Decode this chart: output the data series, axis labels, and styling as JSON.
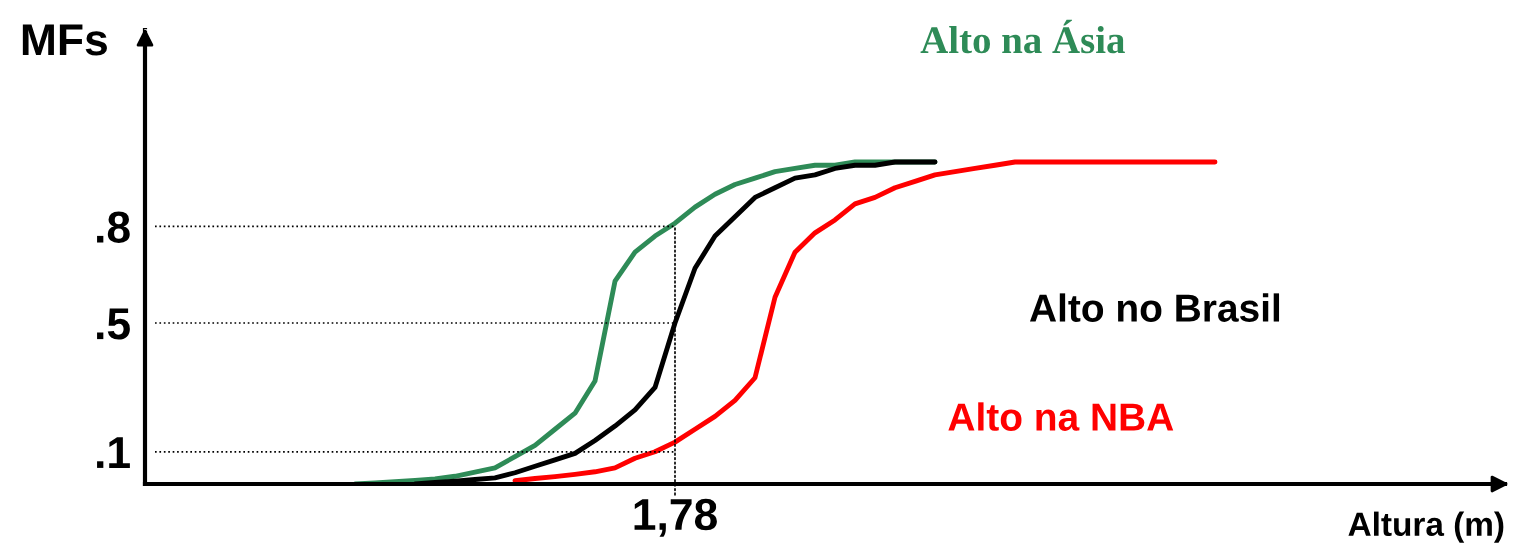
{
  "chart_data": {
    "type": "line",
    "xlabel": "Altura (m)",
    "ylabel": "MFs",
    "ylim": [
      0,
      1.41
    ],
    "yticks": [
      {
        "value": 0.1,
        "label": ".1"
      },
      {
        "value": 0.5,
        "label": ".5"
      },
      {
        "value": 0.8,
        "label": ".8"
      }
    ],
    "categories": [
      null,
      null,
      null,
      null,
      null,
      null,
      null,
      null,
      null,
      null,
      null,
      null,
      null,
      null,
      null,
      null,
      null,
      null,
      null,
      null,
      null,
      null,
      null,
      null,
      null,
      null,
      null,
      null,
      null,
      null,
      null,
      null,
      null,
      null,
      null,
      null,
      null,
      null,
      null,
      null,
      null,
      null,
      null,
      null,
      null,
      null,
      null,
      null,
      null,
      null,
      null,
      null,
      null,
      null,
      null,
      null,
      null,
      null,
      null,
      null,
      null,
      null,
      null,
      null,
      null,
      null,
      null,
      null
    ],
    "series": [
      {
        "name": "Alto na Ásia",
        "color": "#2e8b57",
        "values": [
          null,
          null,
          null,
          null,
          null,
          null,
          null,
          null,
          null,
          null,
          0.0,
          0.003,
          0.007,
          0.011,
          0.016,
          0.024,
          0.037,
          0.05,
          0.085,
          0.12,
          0.17,
          0.22,
          0.32,
          0.63,
          0.72,
          0.77,
          0.81,
          0.86,
          0.9,
          0.93,
          0.95,
          0.97,
          0.98,
          0.99,
          0.99,
          1.0,
          1.0,
          1.0,
          1.0,
          1.0,
          null,
          null,
          null,
          null,
          null,
          null,
          null,
          null,
          null,
          null,
          null,
          null,
          null,
          null,
          null,
          null,
          null,
          null,
          null,
          null,
          null,
          null,
          null,
          null,
          null,
          null,
          null,
          null
        ]
      },
      {
        "name": "Alto no Brasil",
        "color": "#000000",
        "values": [
          null,
          null,
          null,
          null,
          null,
          null,
          null,
          null,
          null,
          null,
          null,
          null,
          null,
          0.0,
          0.005,
          0.009,
          0.014,
          0.019,
          0.035,
          0.055,
          0.075,
          0.095,
          0.135,
          0.18,
          0.23,
          0.3,
          0.5,
          0.67,
          0.77,
          0.83,
          0.89,
          0.92,
          0.95,
          0.96,
          0.98,
          0.99,
          0.99,
          1.0,
          1.0,
          1.0,
          null,
          null,
          null,
          null,
          null,
          null,
          null,
          null,
          null,
          null,
          null,
          null,
          null,
          null,
          null,
          null,
          null,
          null,
          null,
          null,
          null,
          null,
          null,
          null,
          null,
          null,
          null,
          null
        ]
      },
      {
        "name": "Alto na NBA",
        "color": "#ff0000",
        "values": [
          null,
          null,
          null,
          null,
          null,
          null,
          null,
          null,
          null,
          null,
          null,
          null,
          null,
          null,
          null,
          null,
          null,
          null,
          0.01,
          0.017,
          0.023,
          0.03,
          0.038,
          0.05,
          0.08,
          0.1,
          0.13,
          0.17,
          0.21,
          0.26,
          0.33,
          0.58,
          0.72,
          0.78,
          0.82,
          0.87,
          0.89,
          0.92,
          0.94,
          0.96,
          0.97,
          0.98,
          0.99,
          1.0,
          1.0,
          1.0,
          1.0,
          1.0,
          1.0,
          1.0,
          1.0,
          1.0,
          1.0,
          1.0,
          null,
          null,
          null,
          null,
          null,
          null,
          null,
          null,
          null,
          null,
          null,
          null,
          null,
          null
        ]
      },
      {
        "color": "#000000",
        "line_style": "dotted",
        "values": [
          0.1,
          0.1,
          0.1,
          0.1,
          0.1,
          0.1,
          0.1,
          0.1,
          0.1,
          0.1,
          0.1,
          0.1,
          0.1,
          0.1,
          0.1,
          0.1,
          0.1,
          0.1,
          0.1,
          0.1,
          0.1,
          0.1,
          0.1,
          0.1,
          0.1,
          0.1,
          0.1,
          null,
          null,
          null,
          null,
          null,
          null,
          null,
          null,
          null,
          null,
          null,
          null,
          null,
          null,
          null,
          null,
          null,
          null,
          null,
          null,
          null,
          null,
          null,
          null,
          null,
          null,
          null,
          null,
          null,
          null,
          null,
          null,
          null,
          null,
          null,
          null,
          null,
          null,
          null,
          null,
          null
        ]
      },
      {
        "color": "#000000",
        "line_style": "dotted",
        "values": [
          0.5,
          0.5,
          0.5,
          0.5,
          0.5,
          0.5,
          0.5,
          0.5,
          0.5,
          0.5,
          0.5,
          0.5,
          0.5,
          0.5,
          0.5,
          0.5,
          0.5,
          0.5,
          0.5,
          0.5,
          0.5,
          0.5,
          0.5,
          0.5,
          0.5,
          0.5,
          0.5,
          null,
          null,
          null,
          null,
          null,
          null,
          null,
          null,
          null,
          null,
          null,
          null,
          null,
          null,
          null,
          null,
          null,
          null,
          null,
          null,
          null,
          null,
          null,
          null,
          null,
          null,
          null,
          null,
          null,
          null,
          null,
          null,
          null,
          null,
          null,
          null,
          null,
          null,
          null,
          null,
          null
        ]
      },
      {
        "color": "#000000",
        "line_style": "dotted",
        "values": [
          0.8,
          0.8,
          0.8,
          0.8,
          0.8,
          0.8,
          0.8,
          0.8,
          0.8,
          0.8,
          0.8,
          0.8,
          0.8,
          0.8,
          0.8,
          0.8,
          0.8,
          0.8,
          0.8,
          0.8,
          0.8,
          0.8,
          0.8,
          0.8,
          0.8,
          0.8,
          0.8,
          null,
          null,
          null,
          null,
          null,
          null,
          null,
          null,
          null,
          null,
          null,
          null,
          null,
          null,
          null,
          null,
          null,
          null,
          null,
          null,
          null,
          null,
          null,
          null,
          null,
          null,
          null,
          null,
          null,
          null,
          null,
          null,
          null,
          null,
          null,
          null,
          null,
          null,
          null,
          null,
          null
        ]
      }
    ],
    "annotations": [
      "1,78"
    ]
  }
}
